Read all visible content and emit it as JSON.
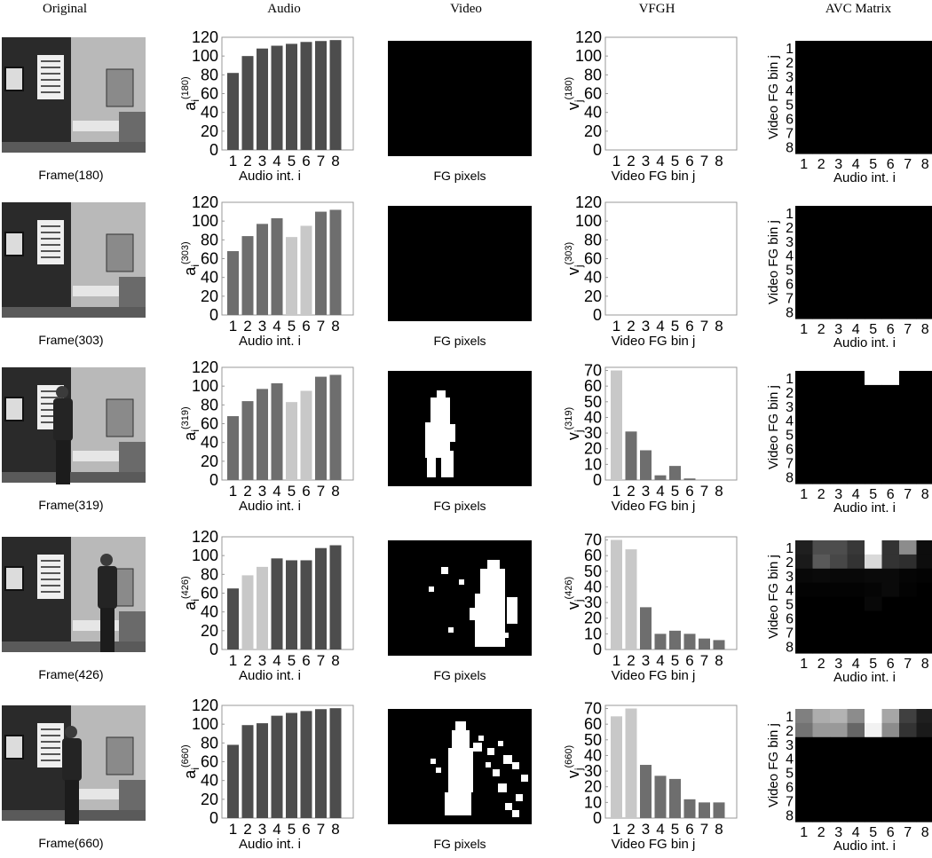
{
  "headers": {
    "original": "Original",
    "audio": "Audio",
    "video": "Video",
    "vfgh": "VFGH",
    "avc": "AVC  Matrix"
  },
  "captions": {
    "fg_pixels": "FG pixels"
  },
  "colors": {
    "bar_dark": "#4d4d4d",
    "bar_mid": "#6e6e6e",
    "bar_light": "#c8c8c8",
    "mask_fg": "#ffffff",
    "mask_bg": "#000000"
  },
  "chart_data": [
    {
      "frame_label": "Frame(180)",
      "audio": {
        "type": "bar",
        "categories": [
          "1",
          "2",
          "3",
          "4",
          "5",
          "6",
          "7",
          "8"
        ],
        "values": [
          82,
          100,
          108,
          111,
          113,
          115,
          116,
          117
        ],
        "shade": [
          "dark",
          "dark",
          "dark",
          "dark",
          "dark",
          "dark",
          "dark",
          "dark"
        ],
        "ylabel_main": "a",
        "ylabel_sub": "i",
        "ylabel_sup": "(180)",
        "xlabel": "Audio int. i",
        "ylim": [
          0,
          120
        ],
        "yticks": [
          0,
          20,
          40,
          60,
          80,
          100,
          120
        ]
      },
      "vfgh": {
        "type": "bar",
        "categories": [
          "1",
          "2",
          "3",
          "4",
          "5",
          "6",
          "7",
          "8"
        ],
        "values": [
          0,
          0,
          0,
          0,
          0,
          0,
          0,
          0
        ],
        "shade": [
          "light",
          "mid",
          "mid",
          "mid",
          "mid",
          "mid",
          "mid",
          "mid"
        ],
        "ylabel_main": "v",
        "ylabel_sub": "j",
        "ylabel_sup": "(180)",
        "xlabel": "Video FG bin j",
        "ylim": [
          0,
          120
        ],
        "yticks": [
          0,
          20,
          40,
          60,
          80,
          100,
          120
        ]
      },
      "avc": {
        "type": "heatmap",
        "xlabel": "Audio int. i",
        "ylabel": "Video FG bin j",
        "xticks": [
          "1",
          "2",
          "3",
          "4",
          "5",
          "6",
          "7",
          "8"
        ],
        "yticks": [
          "1",
          "2",
          "3",
          "4",
          "5",
          "6",
          "7",
          "8"
        ],
        "rows": [
          [
            0,
            0,
            0,
            0,
            0,
            0,
            0,
            0
          ],
          [
            0,
            0,
            0,
            0,
            0,
            0,
            0,
            0
          ],
          [
            0,
            0,
            0,
            0,
            0,
            0,
            0,
            0
          ],
          [
            0,
            0,
            0,
            0,
            0,
            0,
            0,
            0
          ],
          [
            0,
            0,
            0,
            0,
            0,
            0,
            0,
            0
          ],
          [
            0,
            0,
            0,
            0,
            0,
            0,
            0,
            0
          ],
          [
            0,
            0,
            0,
            0,
            0,
            0,
            0,
            0
          ],
          [
            0,
            0,
            0,
            0,
            0,
            0,
            0,
            0
          ]
        ]
      }
    },
    {
      "frame_label": "Frame(303)",
      "audio": {
        "type": "bar",
        "categories": [
          "1",
          "2",
          "3",
          "4",
          "5",
          "6",
          "7",
          "8"
        ],
        "values": [
          68,
          84,
          97,
          103,
          83,
          95,
          110,
          112
        ],
        "shade": [
          "mid",
          "mid",
          "mid",
          "mid",
          "light",
          "light",
          "mid",
          "mid"
        ],
        "ylabel_main": "a",
        "ylabel_sub": "i",
        "ylabel_sup": "(303)",
        "xlabel": "Audio int. i",
        "ylim": [
          0,
          120
        ],
        "yticks": [
          0,
          20,
          40,
          60,
          80,
          100,
          120
        ]
      },
      "vfgh": {
        "type": "bar",
        "categories": [
          "1",
          "2",
          "3",
          "4",
          "5",
          "6",
          "7",
          "8"
        ],
        "values": [
          0,
          0,
          0,
          0,
          0,
          0,
          0,
          0
        ],
        "shade": [
          "light",
          "mid",
          "mid",
          "mid",
          "mid",
          "mid",
          "mid",
          "mid"
        ],
        "ylabel_main": "v",
        "ylabel_sub": "j",
        "ylabel_sup": "(303)",
        "xlabel": "Video FG bin j",
        "ylim": [
          0,
          120
        ],
        "yticks": [
          0,
          20,
          40,
          60,
          80,
          100,
          120
        ]
      },
      "avc": {
        "type": "heatmap",
        "xlabel": "Audio int. i",
        "ylabel": "Video FG bin j",
        "xticks": [
          "1",
          "2",
          "3",
          "4",
          "5",
          "6",
          "7",
          "8"
        ],
        "yticks": [
          "1",
          "2",
          "3",
          "4",
          "5",
          "6",
          "7",
          "8"
        ],
        "rows": [
          [
            0,
            0,
            0,
            0,
            0,
            0,
            0,
            0
          ],
          [
            0,
            0,
            0,
            0,
            0,
            0,
            0,
            0
          ],
          [
            0,
            0,
            0,
            0,
            0,
            0,
            0,
            0
          ],
          [
            0,
            0,
            0,
            0,
            0,
            0,
            0,
            0
          ],
          [
            0,
            0,
            0,
            0,
            0,
            0,
            0,
            0
          ],
          [
            0,
            0,
            0,
            0,
            0,
            0,
            0,
            0
          ],
          [
            0,
            0,
            0,
            0,
            0,
            0,
            0,
            0
          ],
          [
            0,
            0,
            0,
            0,
            0,
            0,
            0,
            0
          ]
        ]
      }
    },
    {
      "frame_label": "Frame(319)",
      "audio": {
        "type": "bar",
        "categories": [
          "1",
          "2",
          "3",
          "4",
          "5",
          "6",
          "7",
          "8"
        ],
        "values": [
          68,
          84,
          97,
          103,
          83,
          95,
          110,
          112
        ],
        "shade": [
          "mid",
          "mid",
          "mid",
          "mid",
          "light",
          "light",
          "mid",
          "mid"
        ],
        "ylabel_main": "a",
        "ylabel_sub": "i",
        "ylabel_sup": "(319)",
        "xlabel": "Audio int. i",
        "ylim": [
          0,
          120
        ],
        "yticks": [
          0,
          20,
          40,
          60,
          80,
          100,
          120
        ]
      },
      "vfgh": {
        "type": "bar",
        "categories": [
          "1",
          "2",
          "3",
          "4",
          "5",
          "6",
          "7",
          "8"
        ],
        "values": [
          70,
          31,
          19,
          3,
          9,
          1,
          0,
          0
        ],
        "shade": [
          "light",
          "mid",
          "mid",
          "mid",
          "mid",
          "mid",
          "mid",
          "mid"
        ],
        "ylabel_main": "v",
        "ylabel_sub": "j",
        "ylabel_sup": "(319)",
        "xlabel": "Video FG bin j",
        "ylim": [
          0,
          72
        ],
        "yticks": [
          0,
          10,
          20,
          30,
          40,
          50,
          60,
          70
        ]
      },
      "avc": {
        "type": "heatmap",
        "xlabel": "Audio int. i",
        "ylabel": "Video FG bin j",
        "xticks": [
          "1",
          "2",
          "3",
          "4",
          "5",
          "6",
          "7",
          "8"
        ],
        "yticks": [
          "1",
          "2",
          "3",
          "4",
          "5",
          "6",
          "7",
          "8"
        ],
        "rows": [
          [
            0,
            0,
            0,
            0,
            1,
            1,
            0,
            0
          ],
          [
            0,
            0,
            0,
            0,
            0,
            0,
            0,
            0
          ],
          [
            0,
            0,
            0,
            0,
            0,
            0,
            0,
            0
          ],
          [
            0,
            0,
            0,
            0,
            0,
            0,
            0,
            0
          ],
          [
            0,
            0,
            0,
            0,
            0,
            0,
            0,
            0
          ],
          [
            0,
            0,
            0,
            0,
            0,
            0,
            0,
            0
          ],
          [
            0,
            0,
            0,
            0,
            0,
            0,
            0,
            0
          ],
          [
            0,
            0,
            0,
            0,
            0,
            0,
            0,
            0
          ]
        ]
      }
    },
    {
      "frame_label": "Frame(426)",
      "audio": {
        "type": "bar",
        "categories": [
          "1",
          "2",
          "3",
          "4",
          "5",
          "6",
          "7",
          "8"
        ],
        "values": [
          65,
          79,
          88,
          97,
          95,
          95,
          108,
          111
        ],
        "shade": [
          "dark",
          "light",
          "light",
          "dark",
          "dark",
          "dark",
          "dark",
          "dark"
        ],
        "ylabel_main": "a",
        "ylabel_sub": "i",
        "ylabel_sup": "(426)",
        "xlabel": "Audio int. i",
        "ylim": [
          0,
          120
        ],
        "yticks": [
          0,
          20,
          40,
          60,
          80,
          100,
          120
        ]
      },
      "vfgh": {
        "type": "bar",
        "categories": [
          "1",
          "2",
          "3",
          "4",
          "5",
          "6",
          "7",
          "8"
        ],
        "values": [
          70,
          64,
          27,
          10,
          12,
          10,
          7,
          6
        ],
        "shade": [
          "light",
          "light",
          "mid",
          "mid",
          "mid",
          "mid",
          "mid",
          "mid"
        ],
        "ylabel_main": "v",
        "ylabel_sub": "j",
        "ylabel_sup": "(426)",
        "xlabel": "Video FG bin j",
        "ylim": [
          0,
          72
        ],
        "yticks": [
          0,
          10,
          20,
          30,
          40,
          50,
          60,
          70
        ]
      },
      "avc": {
        "type": "heatmap",
        "xlabel": "Audio int. i",
        "ylabel": "Video FG bin j",
        "xticks": [
          "1",
          "2",
          "3",
          "4",
          "5",
          "6",
          "7",
          "8"
        ],
        "yticks": [
          "1",
          "2",
          "3",
          "4",
          "5",
          "6",
          "7",
          "8"
        ],
        "rows": [
          [
            0.12,
            0.3,
            0.3,
            0.22,
            1,
            0.2,
            0.55,
            0.05
          ],
          [
            0.1,
            0.35,
            0.28,
            0.2,
            0.85,
            0.2,
            0.18,
            0.05
          ],
          [
            0.03,
            0.04,
            0.03,
            0.03,
            0.04,
            0.04,
            0.02,
            0.01
          ],
          [
            0.01,
            0.01,
            0.01,
            0.01,
            0.02,
            0.04,
            0.01,
            0
          ],
          [
            0,
            0,
            0,
            0,
            0.03,
            0,
            0,
            0
          ],
          [
            0,
            0,
            0,
            0,
            0,
            0,
            0,
            0
          ],
          [
            0,
            0,
            0,
            0,
            0,
            0,
            0,
            0
          ],
          [
            0,
            0,
            0,
            0,
            0,
            0,
            0,
            0
          ]
        ]
      }
    },
    {
      "frame_label": "Frame(660)",
      "audio": {
        "type": "bar",
        "categories": [
          "1",
          "2",
          "3",
          "4",
          "5",
          "6",
          "7",
          "8"
        ],
        "values": [
          78,
          99,
          101,
          109,
          112,
          114,
          116,
          117
        ],
        "shade": [
          "dark",
          "dark",
          "dark",
          "dark",
          "dark",
          "dark",
          "dark",
          "dark"
        ],
        "ylabel_main": "a",
        "ylabel_sub": "i",
        "ylabel_sup": "(660)",
        "xlabel": "Audio int. i",
        "ylim": [
          0,
          120
        ],
        "yticks": [
          0,
          20,
          40,
          60,
          80,
          100,
          120
        ]
      },
      "vfgh": {
        "type": "bar",
        "categories": [
          "1",
          "2",
          "3",
          "4",
          "5",
          "6",
          "7",
          "8"
        ],
        "values": [
          65,
          70,
          34,
          27,
          25,
          12,
          10,
          10
        ],
        "shade": [
          "light",
          "light",
          "mid",
          "mid",
          "mid",
          "mid",
          "mid",
          "mid"
        ],
        "ylabel_main": "v",
        "ylabel_sub": "j",
        "ylabel_sup": "(660)",
        "xlabel": "Video FG bin j",
        "ylim": [
          0,
          72
        ],
        "yticks": [
          0,
          10,
          20,
          30,
          40,
          50,
          60,
          70
        ]
      },
      "avc": {
        "type": "heatmap",
        "xlabel": "Audio int. i",
        "ylabel": "Video FG bin j",
        "xticks": [
          "1",
          "2",
          "3",
          "4",
          "5",
          "6",
          "7",
          "8"
        ],
        "yticks": [
          "1",
          "2",
          "3",
          "4",
          "5",
          "6",
          "7",
          "8"
        ],
        "rows": [
          [
            0.5,
            0.68,
            0.7,
            0.55,
            1,
            0.65,
            0.25,
            0.12
          ],
          [
            0.45,
            0.6,
            0.6,
            0.4,
            0.95,
            0.55,
            0.2,
            0.1
          ],
          [
            0,
            0,
            0,
            0,
            0,
            0,
            0,
            0
          ],
          [
            0,
            0,
            0,
            0,
            0,
            0,
            0,
            0
          ],
          [
            0,
            0,
            0,
            0,
            0,
            0,
            0,
            0
          ],
          [
            0,
            0,
            0,
            0,
            0,
            0,
            0,
            0
          ],
          [
            0,
            0,
            0,
            0,
            0,
            0,
            0,
            0
          ],
          [
            0,
            0,
            0,
            0,
            0,
            0,
            0,
            0
          ]
        ]
      }
    }
  ]
}
